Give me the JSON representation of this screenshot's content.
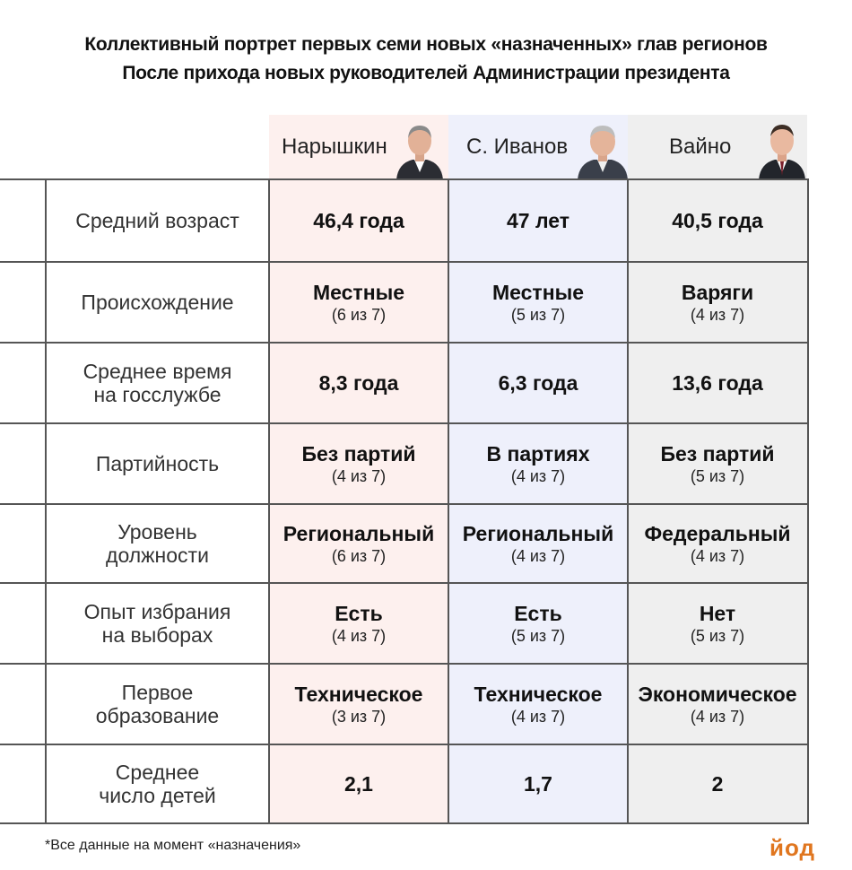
{
  "title": {
    "line1": "Коллективный портрет первых семи новых «назначенных» глав регионов",
    "line2": "После прихода новых руководителей Администрации президента"
  },
  "columns": [
    {
      "name": "Нарышкин",
      "avatar_icon": "person-portrait-icon",
      "background": "#fdf0ee"
    },
    {
      "name": "С. Иванов",
      "avatar_icon": "person-portrait-icon",
      "background": "#eef0fb"
    },
    {
      "name": "Вайно",
      "avatar_icon": "person-portrait-icon",
      "background": "#efefef"
    }
  ],
  "rows": [
    {
      "label": "Средний возраст",
      "cells": [
        {
          "main": "46,4 года",
          "sub": ""
        },
        {
          "main": "47 лет",
          "sub": ""
        },
        {
          "main": "40,5 года",
          "sub": ""
        }
      ]
    },
    {
      "label": "Происхождение",
      "cells": [
        {
          "main": "Местные",
          "sub": "(6 из 7)"
        },
        {
          "main": "Местные",
          "sub": "(5 из 7)"
        },
        {
          "main": "Варяги",
          "sub": "(4 из 7)"
        }
      ]
    },
    {
      "label": "Среднее время\nна госслужбе",
      "cells": [
        {
          "main": "8,3 года",
          "sub": ""
        },
        {
          "main": "6,3 года",
          "sub": ""
        },
        {
          "main": "13,6 года",
          "sub": ""
        }
      ]
    },
    {
      "label": "Партийность",
      "cells": [
        {
          "main": "Без партий",
          "sub": "(4 из 7)"
        },
        {
          "main": "В партиях",
          "sub": "(4 из 7)"
        },
        {
          "main": "Без партий",
          "sub": "(5 из 7)"
        }
      ]
    },
    {
      "label": "Уровень\nдолжности",
      "cells": [
        {
          "main": "Региональный",
          "sub": "(6 из 7)"
        },
        {
          "main": "Региональный",
          "sub": "(4 из 7)"
        },
        {
          "main": "Федеральный",
          "sub": "(4 из 7)"
        }
      ]
    },
    {
      "label": "Опыт избрания\nна выборах",
      "cells": [
        {
          "main": "Есть",
          "sub": "(4 из 7)"
        },
        {
          "main": "Есть",
          "sub": "(5 из 7)"
        },
        {
          "main": "Нет",
          "sub": "(5 из 7)"
        }
      ]
    },
    {
      "label": "Первое\nобразование",
      "cells": [
        {
          "main": "Техническое",
          "sub": "(3 из 7)"
        },
        {
          "main": "Техническое",
          "sub": "(4 из 7)"
        },
        {
          "main": "Экономическое",
          "sub": "(4 из 7)"
        }
      ]
    },
    {
      "label": "Среднее\nчисло детей",
      "cells": [
        {
          "main": "2,1",
          "sub": ""
        },
        {
          "main": "1,7",
          "sub": ""
        },
        {
          "main": "2",
          "sub": ""
        }
      ]
    }
  ],
  "footnote": "*Все данные на момент «назначения»",
  "logo": "йод",
  "colors": {
    "grid": "#555555",
    "logo": "#e0761f"
  }
}
